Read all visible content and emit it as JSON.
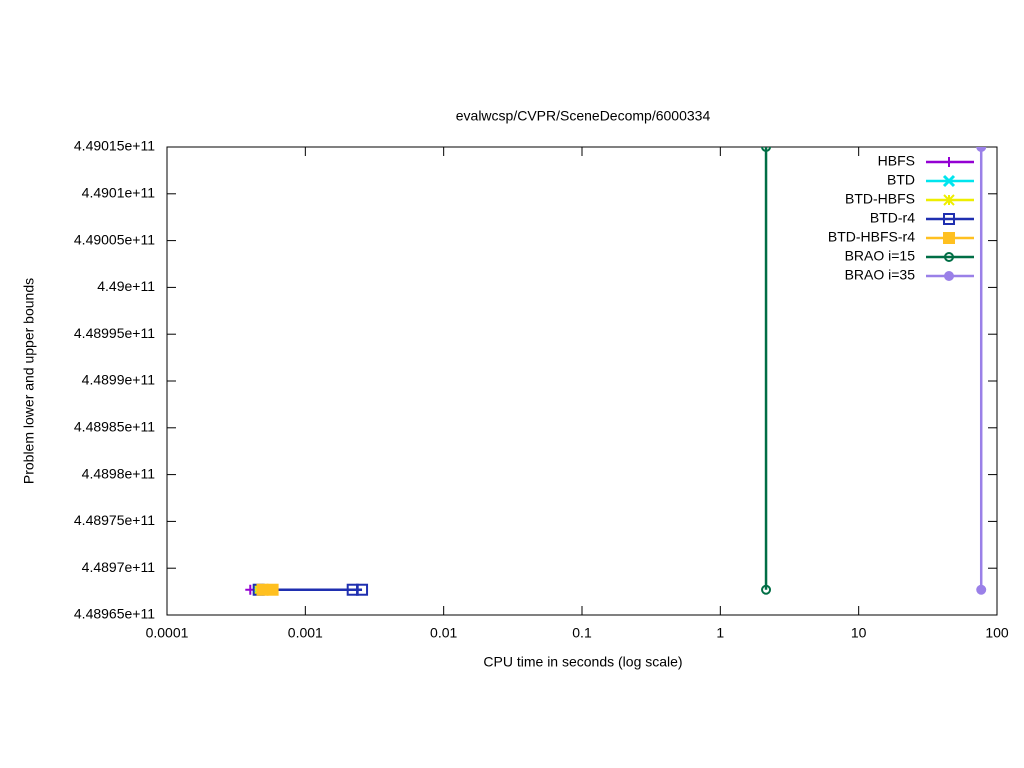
{
  "chart_data": {
    "type": "line",
    "title": "evalwcsp/CVPR/SceneDecomp/6000334",
    "x_label": "CPU time in seconds (log scale)",
    "y_label": "Problem lower and upper bounds",
    "xscale": "log",
    "xlim": [
      0.0001,
      100
    ],
    "xticks": [
      0.0001,
      0.001,
      0.01,
      0.1,
      1,
      10,
      100
    ],
    "ylim": [
      448965000000,
      449015000000
    ],
    "yticks": [
      {
        "value": 448965000000,
        "label": "4.48965e+11"
      },
      {
        "value": 448970000000,
        "label": "4.4897e+11"
      },
      {
        "value": 448975000000,
        "label": "4.48975e+11"
      },
      {
        "value": 448980000000,
        "label": "4.4898e+11"
      },
      {
        "value": 448985000000,
        "label": "4.48985e+11"
      },
      {
        "value": 448990000000,
        "label": "4.4899e+11"
      },
      {
        "value": 448995000000,
        "label": "4.48995e+11"
      },
      {
        "value": 449000000000,
        "label": "4.49e+11"
      },
      {
        "value": 449005000000,
        "label": "4.49005e+11"
      },
      {
        "value": 449010000000,
        "label": "4.4901e+11"
      },
      {
        "value": 449015000000,
        "label": "4.49015e+11"
      }
    ],
    "legend": "top-right",
    "series": [
      {
        "name": "HBFS",
        "color": "#9400d3",
        "marker": "plus",
        "x": [
          0.0004
        ],
        "values": [
          448967700000
        ]
      },
      {
        "name": "BTD",
        "color": "#00e5ee",
        "marker": "cross",
        "x": [
          0.00046
        ],
        "values": [
          448967700000
        ]
      },
      {
        "name": "BTD-HBFS",
        "color": "#eeee00",
        "marker": "star",
        "x": [
          0.00046
        ],
        "values": [
          448967700000
        ]
      },
      {
        "name": "BTD-r4",
        "color": "#1f2fb0",
        "marker": "box-open",
        "x": [
          0.00046,
          0.0022,
          0.00257
        ],
        "values": [
          448967700000,
          448967700000,
          448967700000
        ]
      },
      {
        "name": "BTD-HBFS-r4",
        "color": "#ffc020",
        "marker": "box-filled",
        "x": [
          0.00049,
          0.00058
        ],
        "values": [
          448967700000,
          448967700000
        ]
      },
      {
        "name": "BRAO i=15",
        "color": "#006e45",
        "marker": "circle-open",
        "x": [
          2.14,
          2.14
        ],
        "values": [
          449015000000,
          448967700000
        ]
      },
      {
        "name": "BRAO i=35",
        "color": "#9a80e8",
        "marker": "circle-filled",
        "x": [
          76.9,
          76.9
        ],
        "values": [
          449015000000,
          448967700000
        ]
      }
    ]
  }
}
